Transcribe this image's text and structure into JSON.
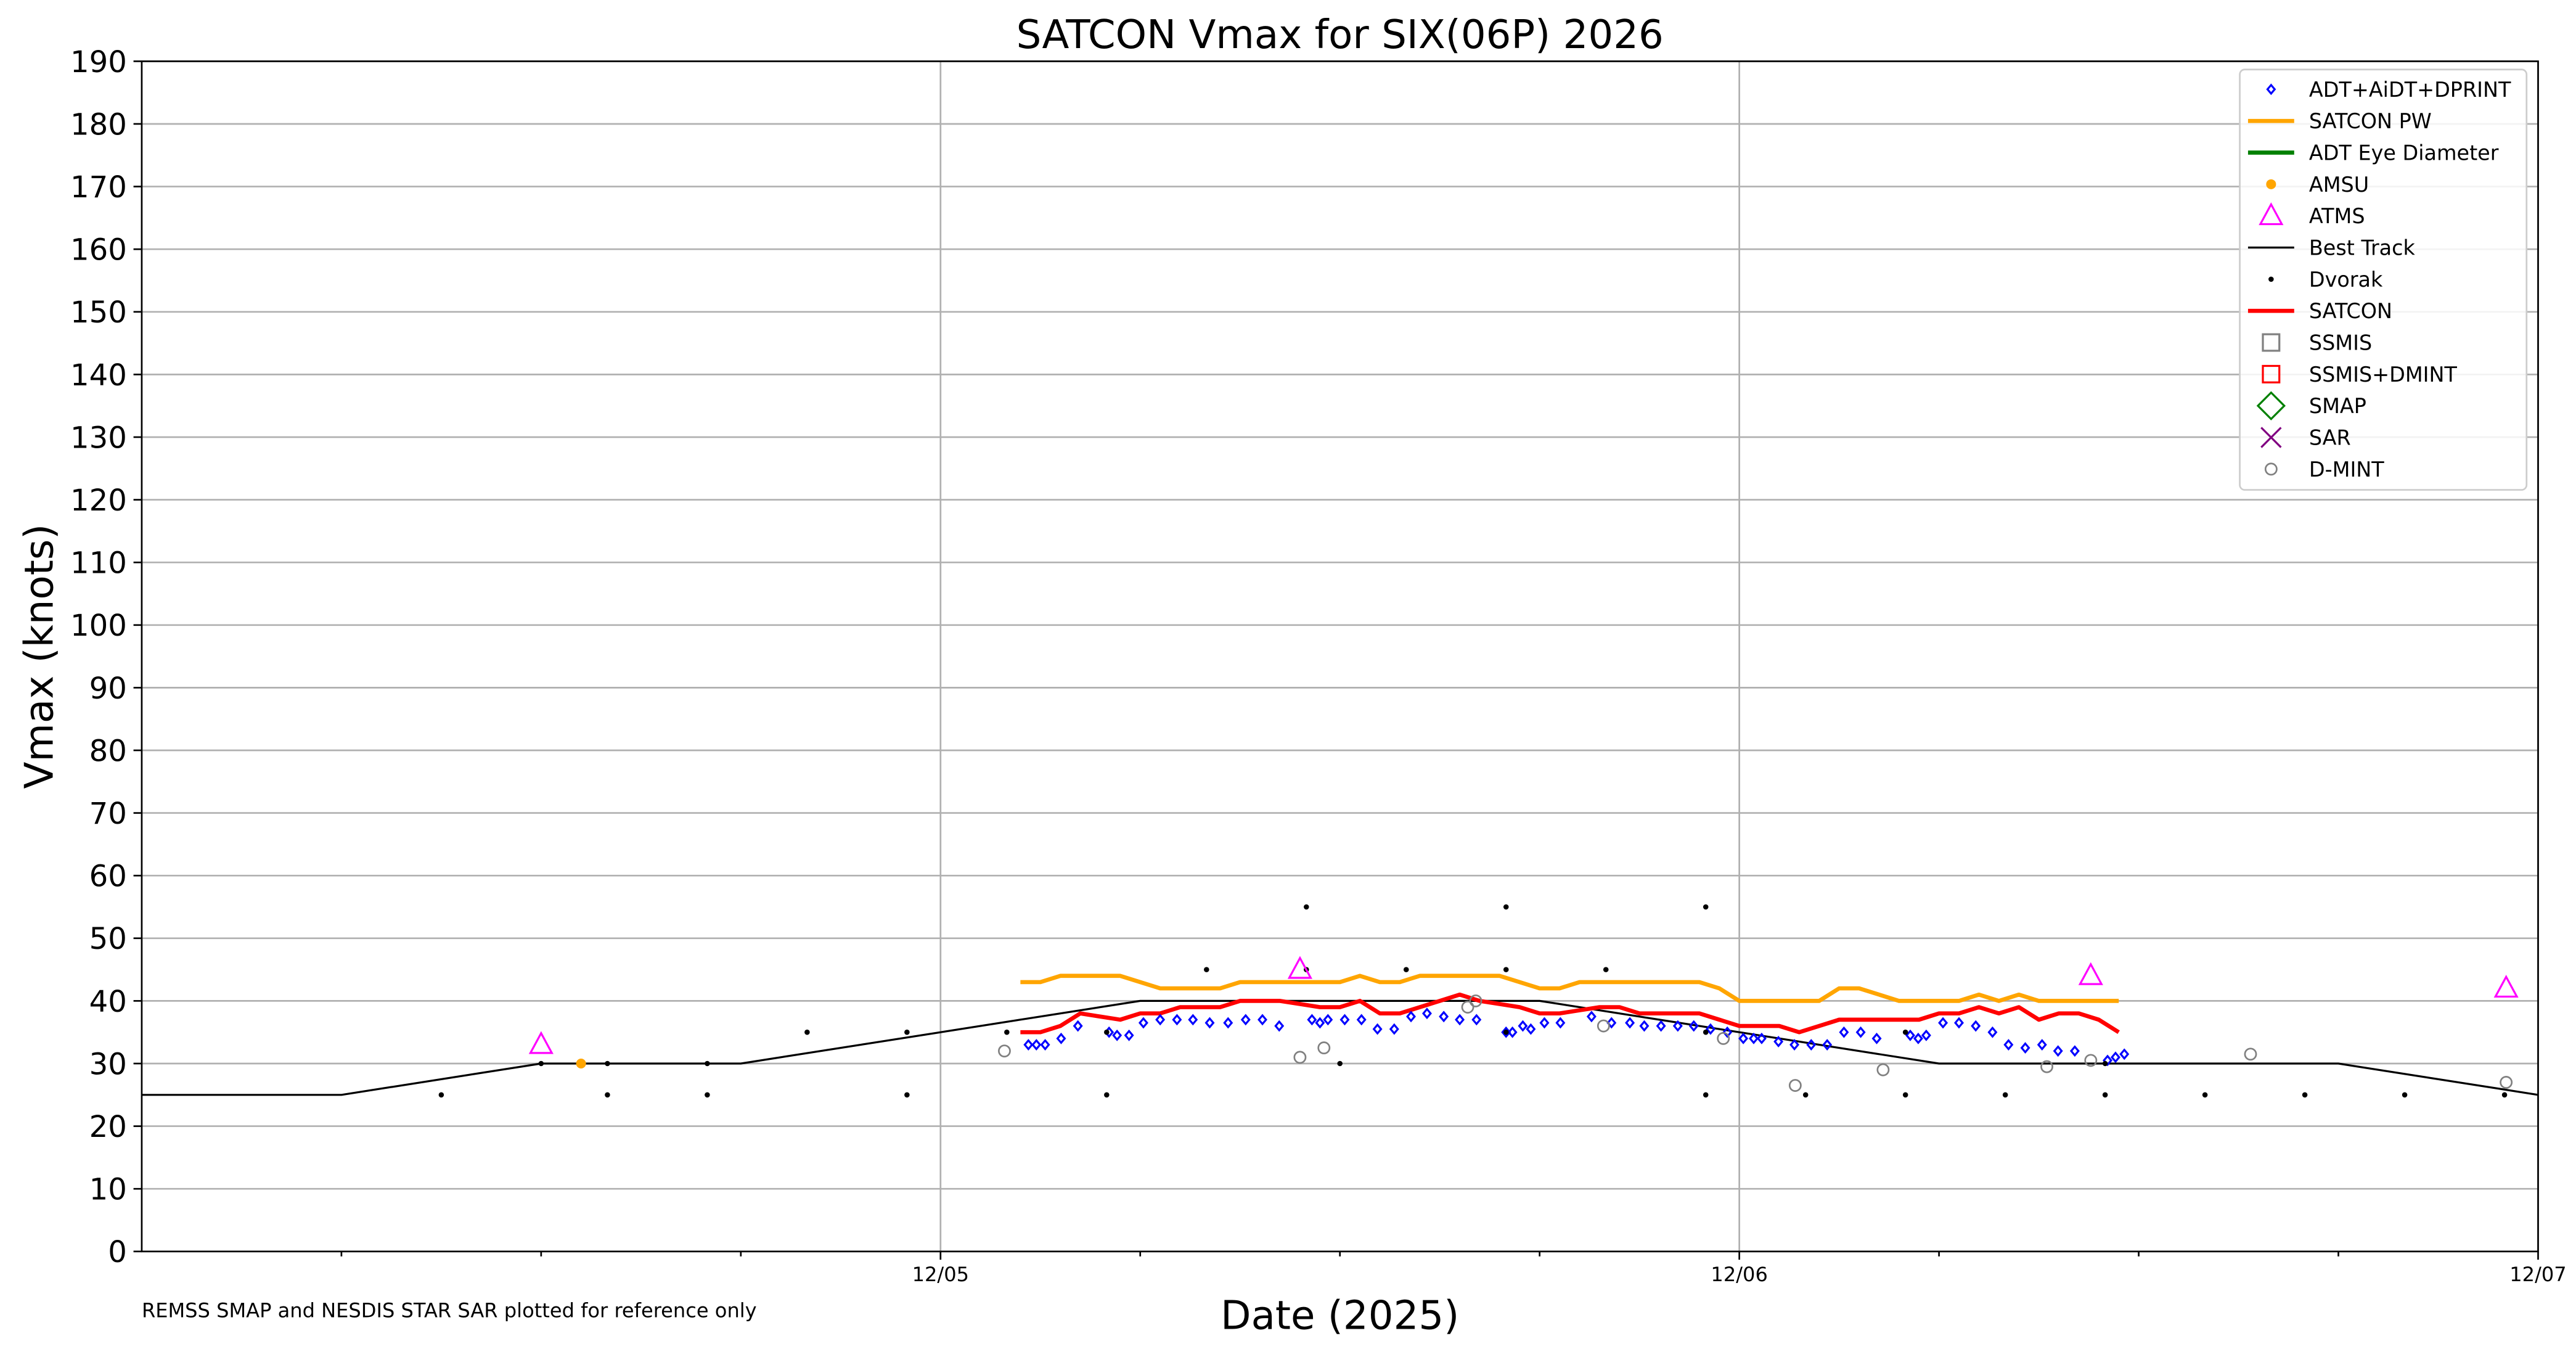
{
  "chart_data": {
    "type": "line",
    "title": "SATCON Vmax for SIX(06P) 2026",
    "x_label": "Date (2025)",
    "y_label": "Vmax (knots)",
    "annotation": "REMSS SMAP and NESDIS STAR SAR plotted for reference only",
    "xlim": [
      4,
      7
    ],
    "xticks": [
      {
        "value": 5,
        "label": "12/05"
      },
      {
        "value": 6,
        "label": "12/06"
      },
      {
        "value": 7,
        "label": "12/07"
      }
    ],
    "xminorticks": [
      4.25,
      4.5,
      4.75,
      5.25,
      5.5,
      5.75,
      6.25,
      6.5,
      6.75
    ],
    "ylim": [
      0,
      190
    ],
    "yticks": [
      0,
      10,
      20,
      30,
      40,
      50,
      60,
      70,
      80,
      90,
      100,
      110,
      120,
      130,
      140,
      150,
      160,
      170,
      180,
      190
    ],
    "grid": true,
    "legend": "upper right",
    "series": [
      {
        "name": "ADT+AiDT+DPRINT",
        "color": "#0000ff",
        "marker": "diamond",
        "x": [
          5.11,
          5.12,
          5.131,
          5.151,
          5.172,
          5.211,
          5.221,
          5.236,
          5.254,
          5.275,
          5.296,
          5.316,
          5.337,
          5.36,
          5.382,
          5.403,
          5.424,
          5.465,
          5.475,
          5.485,
          5.506,
          5.527,
          5.547,
          5.568,
          5.589,
          5.609,
          5.63,
          5.65,
          5.671,
          5.708,
          5.716,
          5.729,
          5.739,
          5.756,
          5.776,
          5.815,
          5.84,
          5.863,
          5.881,
          5.902,
          5.923,
          5.943,
          5.964,
          5.985,
          6.005,
          6.018,
          6.028,
          6.049,
          6.069,
          6.09,
          6.11,
          6.131,
          6.152,
          6.172,
          6.214,
          6.224,
          6.234,
          6.255,
          6.275,
          6.296,
          6.317,
          6.337,
          6.358,
          6.379,
          6.399,
          6.42,
          6.461,
          6.471,
          6.482
        ],
        "values": [
          33,
          33,
          33,
          34,
          36,
          35,
          34.5,
          34.5,
          36.5,
          37,
          37,
          37,
          36.5,
          36.5,
          37,
          37,
          36,
          37,
          36.5,
          37,
          37,
          37,
          35.5,
          35.5,
          37.5,
          38,
          37.5,
          37,
          37,
          35,
          35,
          36,
          35.5,
          36.5,
          36.5,
          37.5,
          36.5,
          36.5,
          36,
          36,
          36,
          36,
          35.5,
          35,
          34,
          34,
          34,
          33.5,
          33,
          33,
          33,
          35,
          35,
          34,
          34.5,
          34,
          34.5,
          36.5,
          36.5,
          36,
          35,
          33,
          32.5,
          33,
          32,
          32,
          30.5,
          31,
          31.5
        ]
      },
      {
        "name": "SATCON PW",
        "color": "#ffa500",
        "marker": "line",
        "x": [
          5.1,
          5.125,
          5.15,
          5.175,
          5.2,
          5.225,
          5.25,
          5.275,
          5.3,
          5.325,
          5.35,
          5.375,
          5.4,
          5.425,
          5.45,
          5.475,
          5.5,
          5.525,
          5.55,
          5.575,
          5.6,
          5.625,
          5.65,
          5.675,
          5.7,
          5.725,
          5.75,
          5.775,
          5.8,
          5.825,
          5.85,
          5.875,
          5.9,
          5.925,
          5.95,
          5.975,
          6.0,
          6.025,
          6.05,
          6.075,
          6.1,
          6.125,
          6.15,
          6.175,
          6.2,
          6.225,
          6.25,
          6.275,
          6.3,
          6.325,
          6.35,
          6.375,
          6.4,
          6.425,
          6.45,
          6.475
        ],
        "values": [
          43,
          43,
          44,
          44,
          44,
          44,
          43,
          42,
          42,
          42,
          42,
          43,
          43,
          43,
          43,
          43,
          43,
          44,
          43,
          43,
          44,
          44,
          44,
          44,
          44,
          43,
          42,
          42,
          43,
          43,
          43,
          43,
          43,
          43,
          43,
          42,
          40,
          40,
          40,
          40,
          40,
          42,
          42,
          41,
          40,
          40,
          40,
          40,
          41,
          40,
          41,
          40,
          40,
          40,
          40,
          40
        ]
      },
      {
        "name": "ADT Eye Diameter",
        "color": "#008000",
        "marker": "line",
        "x": [],
        "values": []
      },
      {
        "name": "AMSU",
        "color": "#ffa500",
        "marker": "filled",
        "x": [
          4.55
        ],
        "values": [
          30
        ]
      },
      {
        "name": "ATMS",
        "color": "#ff00ff",
        "marker": "triangle",
        "x": [
          4.5,
          5.45,
          6.44,
          6.96
        ],
        "values": [
          33,
          45,
          44,
          42
        ]
      },
      {
        "name": "Best Track",
        "color": "#000000",
        "marker": "thinline",
        "x": [
          4,
          4.25,
          4.5,
          4.75,
          5.25,
          5.75,
          6,
          6.25,
          6.75,
          7
        ],
        "values": [
          25,
          25,
          30,
          30,
          40,
          40,
          35,
          30,
          30,
          25
        ]
      },
      {
        "name": "Dvorak",
        "color": "#000000",
        "marker": "dot",
        "x": [
          4.375,
          4.5,
          4.583,
          4.583,
          4.708,
          4.708,
          4.833,
          4.958,
          4.958,
          5.083,
          5.208,
          5.208,
          5.333,
          5.458,
          5.458,
          5.5,
          5.583,
          5.708,
          5.708,
          5.708,
          5.833,
          5.958,
          5.958,
          5.958,
          6.083,
          6.208,
          6.208,
          6.333,
          6.458,
          6.458,
          6.583,
          6.708,
          6.833,
          6.958
        ],
        "values": [
          25,
          30,
          25,
          30,
          25,
          30,
          35,
          35,
          25,
          35,
          35,
          25,
          45,
          55,
          45,
          30,
          45,
          55,
          45,
          35,
          45,
          55,
          35,
          25,
          25,
          35,
          25,
          25,
          25,
          30,
          25,
          25,
          25,
          25
        ]
      },
      {
        "name": "SATCON",
        "color": "#ff0000",
        "marker": "line",
        "x": [
          5.1,
          5.125,
          5.15,
          5.175,
          5.2,
          5.225,
          5.25,
          5.275,
          5.3,
          5.325,
          5.35,
          5.375,
          5.4,
          5.425,
          5.45,
          5.475,
          5.5,
          5.525,
          5.55,
          5.575,
          5.6,
          5.625,
          5.65,
          5.675,
          5.7,
          5.725,
          5.75,
          5.775,
          5.8,
          5.825,
          5.85,
          5.875,
          5.9,
          5.925,
          5.95,
          5.975,
          6.0,
          6.025,
          6.05,
          6.075,
          6.1,
          6.125,
          6.15,
          6.175,
          6.2,
          6.225,
          6.25,
          6.275,
          6.3,
          6.325,
          6.35,
          6.375,
          6.4,
          6.425,
          6.45,
          6.475
        ],
        "values": [
          35,
          35,
          36,
          38,
          37.5,
          37,
          38,
          38,
          39,
          39,
          39,
          40,
          40,
          40,
          39.5,
          39,
          39,
          40,
          38,
          38,
          39,
          40,
          41,
          40,
          39.5,
          39,
          38,
          38,
          38.5,
          39,
          39,
          38,
          38,
          38,
          38,
          37,
          36,
          36,
          36,
          35,
          36,
          37,
          37,
          37,
          37,
          37,
          38,
          38,
          39,
          38,
          39,
          37,
          38,
          38,
          37,
          35
        ]
      },
      {
        "name": "SSMIS",
        "color": "#808080",
        "marker": "square",
        "x": [],
        "values": []
      },
      {
        "name": "SSMIS+DMINT",
        "color": "#ff0000",
        "marker": "square",
        "x": [],
        "values": []
      },
      {
        "name": "SMAP",
        "color": "#008000",
        "marker": "bigdiamond",
        "x": [],
        "values": []
      },
      {
        "name": "SAR",
        "color": "#800080",
        "marker": "cross",
        "x": [],
        "values": []
      },
      {
        "name": "D-MINT",
        "color": "#808080",
        "marker": "circle",
        "x": [
          5.08,
          5.45,
          5.48,
          5.66,
          5.67,
          5.83,
          5.98,
          6.07,
          6.18,
          6.385,
          6.44,
          6.64,
          6.96
        ],
        "values": [
          32,
          31,
          32.5,
          39,
          40,
          36,
          34,
          26.5,
          29,
          29.5,
          30.5,
          31.5,
          27
        ]
      }
    ]
  }
}
